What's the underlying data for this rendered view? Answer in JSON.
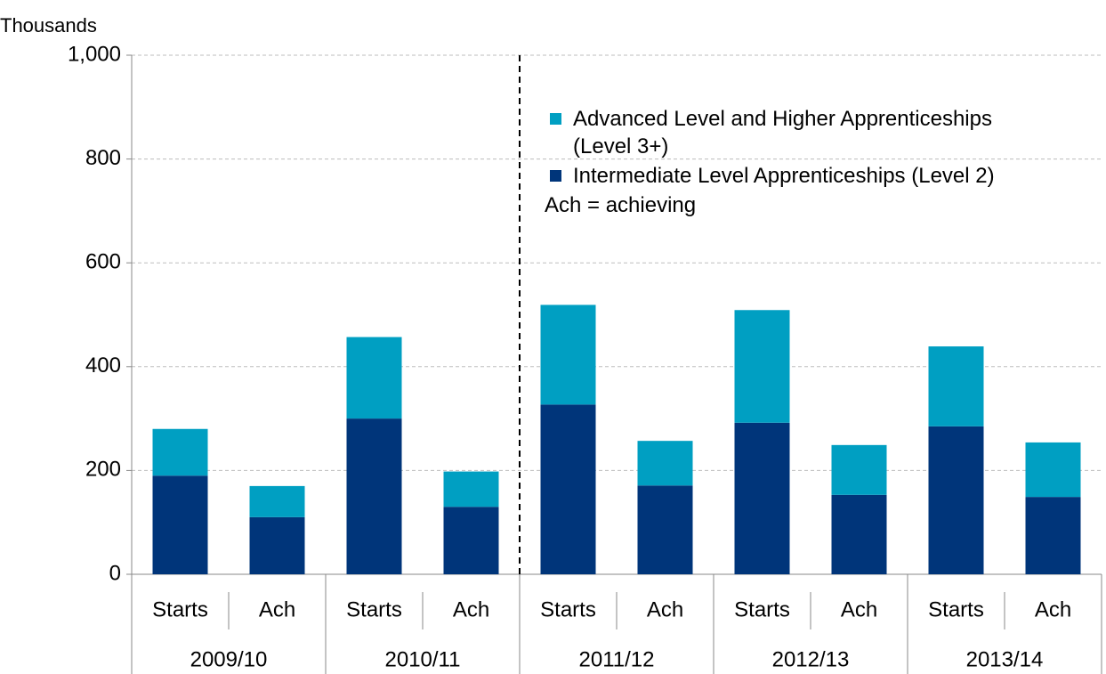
{
  "chart_data": {
    "type": "stacked_bar",
    "y_axis_label": "Thousands",
    "categories": [
      "Starts",
      "Ach",
      "Starts",
      "Ach",
      "Starts",
      "Ach",
      "Starts",
      "Ach",
      "Starts",
      "Ach"
    ],
    "groups": [
      "2009/10",
      "2010/11",
      "2011/12",
      "2012/13",
      "2013/14"
    ],
    "series": [
      {
        "name": "Intermediate Level Apprenticeships (Level 2)",
        "color": "#00357a",
        "values": [
          190,
          110,
          300,
          130,
          327,
          171,
          292,
          153,
          285,
          149
        ]
      },
      {
        "name": "Advanced Level and Higher Apprenticeships (Level 3+)",
        "color": "#009fc2",
        "values": [
          90,
          60,
          157,
          68,
          192,
          86,
          217,
          96,
          154,
          105
        ]
      }
    ],
    "annotation": "Ach = achieving",
    "ylim": [
      0,
      1000
    ],
    "yticks": [
      0,
      200,
      400,
      600,
      800,
      {
        "value": 1000,
        "label": "1,000"
      }
    ],
    "grid": true,
    "legend": "top-right"
  }
}
